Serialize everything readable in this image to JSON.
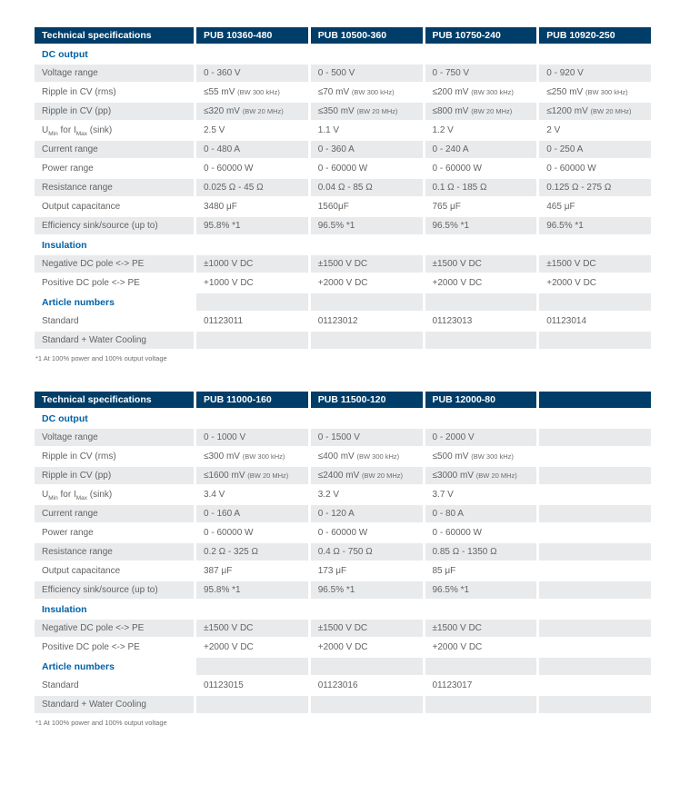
{
  "colors": {
    "header_bg": "#003d68",
    "header_text": "#ffffff",
    "section_text": "#0062a7",
    "body_text": "#636363",
    "stripe_bg": "#e8eaec",
    "page_bg": "#ffffff"
  },
  "tables": [
    {
      "columns": [
        "Technical specifications",
        "PUB 10360-480",
        "PUB 10500-360",
        "PUB 10750-240",
        "PUB 10920-250"
      ],
      "rows": [
        {
          "type": "section",
          "label": "DC output"
        },
        {
          "type": "data",
          "label": "Voltage range",
          "values": [
            "0 - 360 V",
            "0 - 500 V",
            "0 - 750 V",
            "0 - 920 V"
          ]
        },
        {
          "type": "data",
          "label": "Ripple in CV (rms)",
          "values": [
            {
              "v": "≤55 mV",
              "note": "(BW 300 kHz)"
            },
            {
              "v": "≤70 mV",
              "note": "(BW 300 kHz)"
            },
            {
              "v": "≤200 mV",
              "note": "(BW 300 kHz)"
            },
            {
              "v": "≤250 mV",
              "note": "(BW 300 kHz)"
            }
          ]
        },
        {
          "type": "data",
          "label": "Ripple in CV (pp)",
          "values": [
            {
              "v": "≤320 mV",
              "note": "(BW 20 MHz)"
            },
            {
              "v": "≤350 mV",
              "note": "(BW 20 MHz)"
            },
            {
              "v": "≤800 mV",
              "note": "(BW 20 MHz)"
            },
            {
              "v": "≤1200 mV",
              "note": "(BW 20 MHz)"
            }
          ]
        },
        {
          "type": "data",
          "label_parts": [
            {
              "t": "U"
            },
            {
              "t": "Min",
              "sub": true
            },
            {
              "t": " for I"
            },
            {
              "t": "Max",
              "sub": true
            },
            {
              "t": " (sink)"
            }
          ],
          "values": [
            "2.5 V",
            "1.1 V",
            "1.2 V",
            "2 V"
          ]
        },
        {
          "type": "data",
          "label": "Current range",
          "values": [
            "0 - 480 A",
            "0 - 360 A",
            "0 - 240 A",
            "0 - 250 A"
          ]
        },
        {
          "type": "data",
          "label": "Power range",
          "values": [
            "0 - 60000 W",
            "0 - 60000 W",
            "0 - 60000 W",
            "0 - 60000 W"
          ]
        },
        {
          "type": "data",
          "label": "Resistance range",
          "values": [
            "0.025 Ω - 45 Ω",
            "0.04 Ω - 85 Ω",
            "0.1 Ω - 185 Ω",
            "0.125 Ω - 275 Ω"
          ]
        },
        {
          "type": "data",
          "label": "Output capacitance",
          "values": [
            "3480 μF",
            "1560μF",
            "765 μF",
            "465 μF"
          ]
        },
        {
          "type": "data",
          "label": "Efficiency sink/source (up to)",
          "values": [
            "95.8% *1",
            "96.5% *1",
            "96.5% *1",
            "96.5% *1"
          ]
        },
        {
          "type": "section",
          "label": "Insulation"
        },
        {
          "type": "data",
          "label": "Negative DC pole <-> PE",
          "values": [
            "±1000 V DC",
            "±1500 V DC",
            "±1500 V DC",
            "±1500 V DC"
          ]
        },
        {
          "type": "data",
          "label": "Positive DC pole <-> PE",
          "values": [
            "+1000 V DC",
            "+2000 V DC",
            "+2000 V DC",
            "+2000 V DC"
          ]
        },
        {
          "type": "section",
          "label": "Article numbers"
        },
        {
          "type": "data",
          "label": "Standard",
          "values": [
            "01123011",
            "01123012",
            "01123013",
            "01123014"
          ]
        },
        {
          "type": "data",
          "label": "Standard + Water Cooling",
          "values": [
            "",
            "",
            "",
            ""
          ]
        }
      ],
      "footnote": "*1 At 100% power and 100% output voltage"
    },
    {
      "columns": [
        "Technical specifications",
        "PUB 11000-160",
        "PUB 11500-120",
        "PUB 12000-80",
        ""
      ],
      "rows": [
        {
          "type": "section",
          "label": "DC output"
        },
        {
          "type": "data",
          "label": "Voltage range",
          "values": [
            "0 - 1000 V",
            "0 - 1500 V",
            "0 - 2000 V",
            ""
          ]
        },
        {
          "type": "data",
          "label": "Ripple in CV (rms)",
          "values": [
            {
              "v": "≤300 mV",
              "note": "(BW 300 kHz)"
            },
            {
              "v": "≤400 mV",
              "note": "(BW 300 kHz)"
            },
            {
              "v": "≤500 mV",
              "note": "(BW 300 kHz)"
            },
            ""
          ]
        },
        {
          "type": "data",
          "label": "Ripple in CV (pp)",
          "values": [
            {
              "v": "≤1600 mV",
              "note": "(BW 20 MHz)"
            },
            {
              "v": "≤2400 mV",
              "note": "(BW 20 MHz)"
            },
            {
              "v": "≤3000 mV",
              "note": "(BW 20 MHz)"
            },
            ""
          ]
        },
        {
          "type": "data",
          "label_parts": [
            {
              "t": "U"
            },
            {
              "t": "Min",
              "sub": true
            },
            {
              "t": " for I"
            },
            {
              "t": "Max",
              "sub": true
            },
            {
              "t": " (sink)"
            }
          ],
          "values": [
            "3.4 V",
            "3.2 V",
            "3.7 V",
            ""
          ]
        },
        {
          "type": "data",
          "label": "Current range",
          "values": [
            "0 - 160 A",
            "0 - 120 A",
            "0 - 80 A",
            ""
          ]
        },
        {
          "type": "data",
          "label": "Power range",
          "values": [
            "0 - 60000 W",
            "0 - 60000 W",
            "0 - 60000 W",
            ""
          ]
        },
        {
          "type": "data",
          "label": "Resistance range",
          "values": [
            "0.2 Ω - 325 Ω",
            "0.4 Ω - 750 Ω",
            "0.85 Ω - 1350 Ω",
            ""
          ]
        },
        {
          "type": "data",
          "label": "Output capacitance",
          "values": [
            "387 μF",
            "173 μF",
            "85 μF",
            ""
          ]
        },
        {
          "type": "data",
          "label": "Efficiency sink/source (up to)",
          "values": [
            "95.8% *1",
            "96.5% *1",
            "96.5% *1",
            ""
          ]
        },
        {
          "type": "section",
          "label": "Insulation"
        },
        {
          "type": "data",
          "label": "Negative DC pole <-> PE",
          "values": [
            "±1500 V DC",
            "±1500 V DC",
            "±1500 V DC",
            ""
          ]
        },
        {
          "type": "data",
          "label": "Positive DC pole <-> PE",
          "values": [
            "+2000 V DC",
            "+2000 V DC",
            "+2000 V DC",
            ""
          ]
        },
        {
          "type": "section",
          "label": "Article numbers"
        },
        {
          "type": "data",
          "label": "Standard",
          "values": [
            "01123015",
            "01123016",
            "01123017",
            ""
          ]
        },
        {
          "type": "data",
          "label": "Standard + Water Cooling",
          "values": [
            "",
            "",
            "",
            ""
          ]
        }
      ],
      "footnote": "*1 At 100% power and 100% output voltage"
    }
  ]
}
